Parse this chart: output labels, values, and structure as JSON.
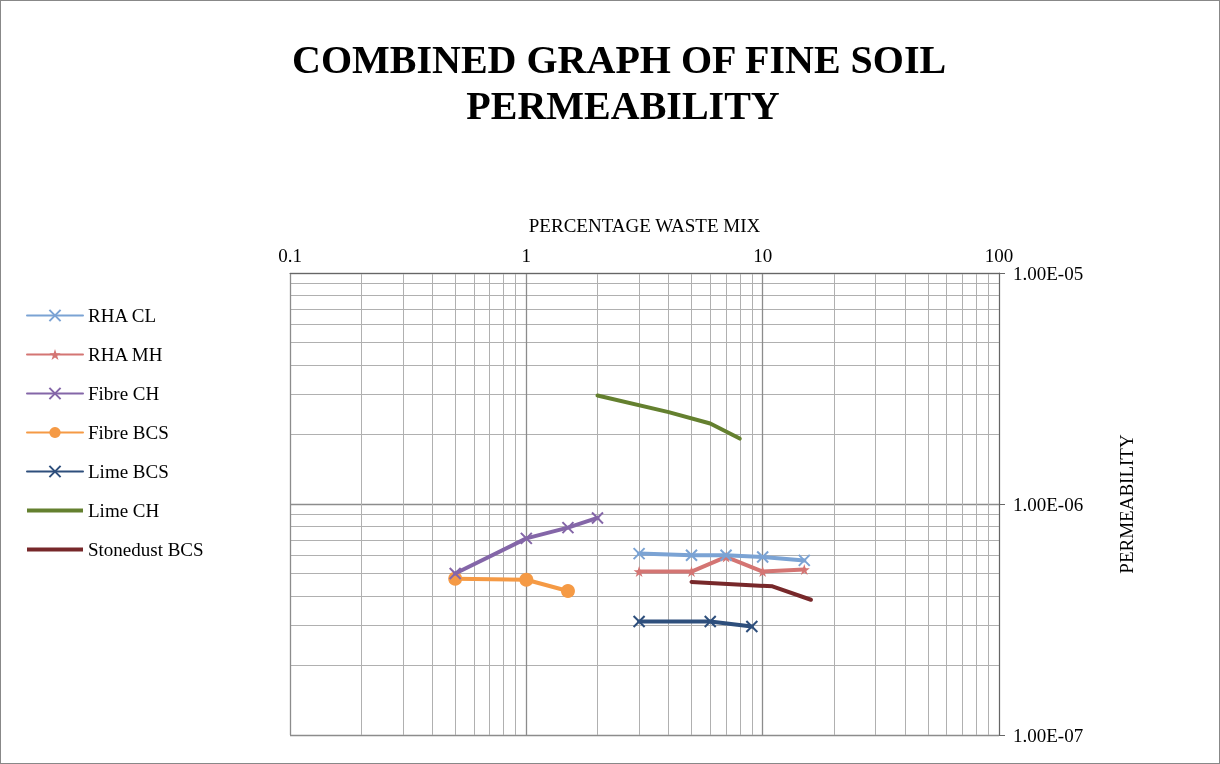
{
  "chart_data": {
    "type": "line",
    "title": "COMBINED GRAPH OF FINE SOIL PERMEABILITY",
    "xlabel": "PERCENTAGE WASTE MIX",
    "ylabel": "PERMEABILITY",
    "log": "xy",
    "grid": true,
    "legend": "left",
    "line_style": "solid",
    "xlim": [
      0.1,
      100
    ],
    "xticks": [
      0.1,
      1,
      10,
      100
    ],
    "ylim": [
      1e-07,
      1e-05
    ],
    "yticks": [
      {
        "value": 1e-05,
        "label": "1.00E-05"
      },
      {
        "value": 1e-06,
        "label": "1.00E-06"
      },
      {
        "value": 1e-07,
        "label": "1.00E-07"
      }
    ],
    "series": [
      {
        "name": "RHA CL",
        "color": "#7ba3d4",
        "marker": "cross",
        "x": [
          3,
          5,
          7,
          10,
          15
        ],
        "values": [
          6.1e-07,
          6e-07,
          6e-07,
          5.9e-07,
          5.7e-07
        ]
      },
      {
        "name": "RHA MH",
        "color": "#d47573",
        "marker": "star",
        "x": [
          3,
          5,
          7,
          10,
          15
        ],
        "values": [
          5.1e-07,
          5.1e-07,
          5.9e-07,
          5.1e-07,
          5.2e-07
        ]
      },
      {
        "name": "Fibre CH",
        "color": "#8466a8",
        "marker": "cross",
        "x": [
          0.5,
          1,
          1.5,
          2
        ],
        "values": [
          5e-07,
          7.1e-07,
          7.9e-07,
          8.7e-07
        ]
      },
      {
        "name": "Fibre BCS",
        "color": "#f59a45",
        "marker": "circle",
        "x": [
          0.5,
          1,
          1.5
        ],
        "values": [
          4.75e-07,
          4.7e-07,
          4.2e-07
        ]
      },
      {
        "name": "Lime BCS",
        "color": "#2e4f7c",
        "marker": "cross",
        "x": [
          3,
          6,
          9
        ],
        "values": [
          3.1e-07,
          3.1e-07,
          2.95e-07
        ]
      },
      {
        "name": "Lime CH",
        "color": "#64802f",
        "marker": "none",
        "x": [
          2,
          4,
          6,
          8
        ],
        "values": [
          2.95e-06,
          2.5e-06,
          2.23e-06,
          1.92e-06
        ]
      },
      {
        "name": "Stonedust BCS",
        "color": "#77282a",
        "marker": "none",
        "x": [
          5,
          11,
          16
        ],
        "values": [
          4.6e-07,
          4.4e-07,
          3.85e-07
        ]
      }
    ]
  }
}
